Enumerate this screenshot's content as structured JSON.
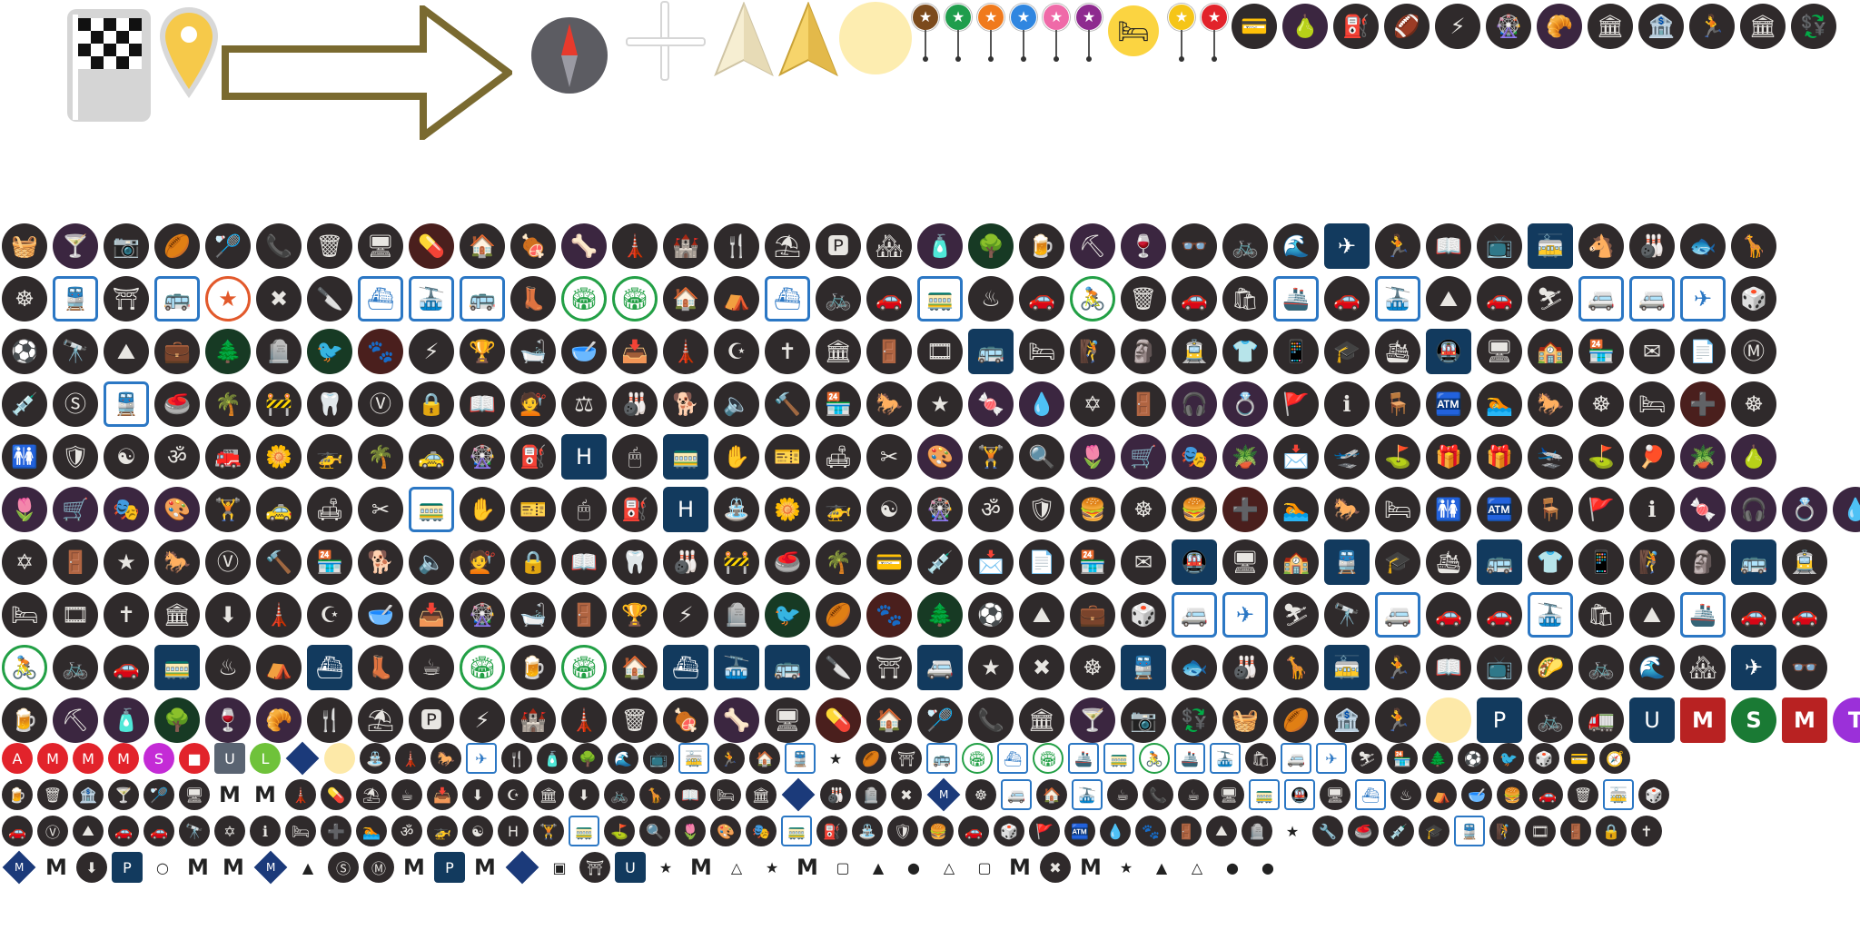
{
  "colors": {
    "icon_dark": "#2f2a2b",
    "icon_brown": "#4a1f1d",
    "icon_purple": "#3b2640",
    "icon_navy": "#123a5e",
    "transit_blue": "#2b77c4",
    "transit_green": "#23a046",
    "accent_orange": "#e2592b",
    "marker_yellow": "#fbd441",
    "halo_yellow": "#fdedb0",
    "arrow_olive": "#7a6a30"
  },
  "top_sprites": {
    "flag_icon": "checkered-flag-icon",
    "pin_icon": "location-pin-icon",
    "arrow_icon": "direction-arrow-icon",
    "compass_icon": "compass-icon",
    "crosshair_icon": "crosshair-icon",
    "north_icons": [
      "north-arrow-light-icon",
      "north-arrow-gold-icon"
    ],
    "halo_icon": "location-halo-icon",
    "pins": [
      {
        "color": "#7b4a1c",
        "glyph": "★"
      },
      {
        "color": "#1f9d4c",
        "glyph": "★"
      },
      {
        "color": "#f07a1c",
        "glyph": "★"
      },
      {
        "color": "#2f86e0",
        "glyph": "★"
      },
      {
        "color": "#ef6aa8",
        "glyph": "★"
      },
      {
        "color": "#8e2a8f",
        "glyph": "★"
      }
    ],
    "hotel_pin_glyph": "🛏",
    "pins2": [
      {
        "color": "#f5c518",
        "glyph": "★"
      },
      {
        "color": "#e2232b",
        "glyph": "★"
      }
    ],
    "header_icons": [
      "💳",
      "🍐",
      "⛽",
      "🏈",
      "⚡",
      "🎡",
      "🥐",
      "🏛",
      "🏦",
      "🏃",
      "🏛",
      "💱"
    ]
  },
  "grid_rows": [
    [
      "🧺",
      "🍸",
      "📷",
      "🏉",
      "🏸",
      "📞",
      "🗑",
      "🖥",
      "💊",
      "🏠",
      "🍖",
      "🦴",
      "🗼",
      "🏰",
      "🍴",
      "⛱",
      "🅿",
      "🏘",
      "🧴",
      "🌳",
      "🍺",
      "⛏",
      "🍷",
      "👓",
      "🚲",
      "🌊",
      "✈",
      "🏃",
      "📖",
      "📺",
      "🚋",
      "🐴",
      "🎳",
      "🐟",
      "🦒"
    ],
    [
      "☸",
      "🚆",
      "⛩",
      "🚌",
      "★",
      "✖",
      "🔪",
      "⛴",
      "🚠",
      "🚌",
      "👢",
      "🏟",
      "🏟",
      "🏠",
      "⛺",
      "⛴",
      "🚲",
      "🚗",
      "🚃",
      "♨",
      "🚗",
      "🚴",
      "🗑",
      "🚗",
      "🛍",
      "🚢",
      "🚗",
      "🚠",
      "⛰",
      "🚗",
      "⛷",
      "🚐",
      "🚐",
      "✈",
      "🎲"
    ],
    [
      "⚽",
      "🔭",
      "⛰",
      "💼",
      "🌲",
      "🪦",
      "🐦",
      "🐾",
      "⚡",
      "🏆",
      "🛁",
      "🥣",
      "📥",
      "🗼",
      "☪",
      "✝",
      "🏛",
      "🚪",
      "🎞",
      "🚌",
      "🛏",
      "🧗",
      "🗿",
      "🚊",
      "👕",
      "📱",
      "🎓",
      "🛳",
      "🚇",
      "🖥",
      "🏫",
      "🏪",
      "✉",
      "📄",
      "Ⓜ"
    ],
    [
      "💉",
      "Ⓢ",
      "🚆",
      "🥌",
      "🌴",
      "🚧",
      "🦷",
      "Ⓥ",
      "🔒",
      "📖",
      "💇",
      "⚖",
      "🎳",
      "🐕",
      "🔈",
      "🔨",
      "🏪",
      "🐎",
      "★",
      "🍬",
      "💧",
      "✡",
      "🚪",
      "🎧",
      "💍",
      "🚩",
      "ℹ",
      "🪑",
      "🏧",
      "🏊",
      "🐎",
      "☸",
      "🛏",
      "➕",
      "☸"
    ],
    [
      "🚻",
      "🛡",
      "☯",
      "ॐ",
      "🚒",
      "🌼",
      "🚁",
      "🌴",
      "🚕",
      "🎡",
      "⛽",
      "H",
      "🖱",
      "🚃",
      "✋",
      "🎫",
      "🛋",
      "✂",
      "🎨",
      "🏋",
      "🔍",
      "🌷",
      "🛒",
      "🎭",
      "🪴",
      "📩",
      "🛫",
      "⛳",
      "🎁",
      "🎁",
      "🛬",
      "⛳",
      "🏓",
      "🪴",
      "🍐"
    ],
    [
      "🌷",
      "🛒",
      "🎭",
      "🎨",
      "🏋",
      "🚕",
      "🛋",
      "✂",
      "🚃",
      "✋",
      "🎫",
      "🖱",
      "⛽",
      "H",
      "⛲",
      "🌼",
      "🚁",
      "☯",
      "🎡",
      "ॐ",
      "🛡",
      "🍔",
      "☸",
      "🍔",
      "➕",
      "🏊",
      "🐎",
      "🛏",
      "🚻",
      "🏧",
      "🪑",
      "🚩",
      "ℹ",
      "🍬",
      "🎧",
      "💍",
      "💧"
    ],
    [
      "✡",
      "🚪",
      "★",
      "🐎",
      "Ⓥ",
      "🔨",
      "🏪",
      "🐕",
      "🔈",
      "💇",
      "🔒",
      "📖",
      "🦷",
      "🎳",
      "🚧",
      "🥌",
      "🌴",
      "💳",
      "💉",
      "📩",
      "📄",
      "🏪",
      "✉",
      "🚇",
      "🖥",
      "🏫",
      "🚆",
      "🎓",
      "🛳",
      "🚌",
      "👕",
      "📱",
      "🧗",
      "🗿",
      "🚌",
      "🚊"
    ],
    [
      "🛏",
      "🎞",
      "✝",
      "🏛",
      "⬇",
      "🗼",
      "☪",
      "🥣",
      "📥",
      "🎡",
      "🛁",
      "🚪",
      "🏆",
      "⚡",
      "🪦",
      "🐦",
      "🏉",
      "🐾",
      "🌲",
      "⚽",
      "⛰",
      "💼",
      "🎲",
      "🚐",
      "✈",
      "⛷",
      "🔭",
      "🚐",
      "🚗",
      "🚗",
      "🚠",
      "🛍",
      "⛰",
      "🚢",
      "🚗",
      "🚗"
    ],
    [
      "🚴",
      "🚲",
      "🚗",
      "🚃",
      "♨",
      "⛺",
      "⛴",
      "👢",
      "☕",
      "🏟",
      "🍺",
      "🏟",
      "🏠",
      "⛴",
      "🚠",
      "🚌",
      "🔪",
      "⛩",
      "🚐",
      "★",
      "✖",
      "☸",
      "🚆",
      "🐟",
      "🎳",
      "🦒",
      "🚋",
      "🏃",
      "📖",
      "📺",
      "🌮",
      "🚲",
      "🌊",
      "🏘",
      "✈",
      "👓"
    ],
    [
      "🍺",
      "⛏",
      "🧴",
      "🌳",
      "🍷",
      "🥐",
      "🍴",
      "⛱",
      "🅿",
      "⚡",
      "🏰",
      "🗼",
      "🗑",
      "🍖",
      "🦴",
      "🖥",
      "💊",
      "🏠",
      "🏸",
      "📞",
      "🏛",
      "🍸",
      "📷",
      "💱",
      "🧺",
      "🏉",
      "🏦",
      "🏃",
      "🟡",
      "P",
      "🚲",
      "🚛",
      "U",
      "M",
      "S",
      "M",
      "T"
    ]
  ],
  "small_rows": [
    [
      "A",
      "M",
      "M",
      "M",
      "S",
      "■",
      "U",
      "L",
      "⊖",
      "●",
      "⛲",
      "🗼",
      "🐎",
      "✈",
      "🍴",
      "🧴",
      "🌳",
      "🌊",
      "📺",
      "🚋",
      "🏃",
      "🏠",
      "🚆",
      "★",
      "🏉",
      "⛩",
      "🚌",
      "🏟",
      "⛴",
      "🏟",
      "🚢",
      "🚃",
      "🚴",
      "🚢",
      "🚠",
      "🛍",
      "🚐",
      "✈",
      "⛷",
      "🏪",
      "🌲",
      "⚽",
      "🐦",
      "🎲",
      "💳",
      "🧭"
    ],
    [
      "🍺",
      "🗑",
      "🏦",
      "🍸",
      "🏸",
      "🖥",
      "M",
      "M",
      "🗼",
      "💊",
      "⛱",
      "☕",
      "📥",
      "⬇",
      "☪",
      "🏛",
      "⬇",
      "🚲",
      "🦒",
      "📖",
      "🛏",
      "🏛",
      "⊖",
      "🎳",
      "🪦",
      "✖",
      "◆",
      "☸",
      "🚐",
      "🏠",
      "🚠",
      "☕",
      "📞",
      "☕",
      "🖥",
      "🚃",
      "🚇",
      "🖥",
      "⛴",
      "♨",
      "⛺",
      "🥣",
      "🍔",
      "🚗",
      "🗑",
      "🚋",
      "🎲"
    ],
    [
      "🚗",
      "Ⓥ",
      "⛰",
      "🚗",
      "🚗",
      "🔭",
      "✡",
      "ℹ",
      "🛏",
      "➕",
      "🏊",
      "ॐ",
      "🚁",
      "☯",
      "H",
      "🏋",
      "🚃",
      "⛳",
      "🔍",
      "🌷",
      "🎨",
      "🎭",
      "🚃",
      "⛽",
      "⛲",
      "🛡",
      "🍔",
      "🚗",
      "🎲",
      "🚩",
      "🏧",
      "💧",
      "🐾",
      "🚪",
      "⛰",
      "🪦",
      "★",
      "🔧",
      "🥌",
      "💉",
      "🎓",
      "🚆",
      "🧗",
      "🎞",
      "🚪",
      "🔒",
      "✝"
    ],
    [
      "◆",
      "M",
      "⬇",
      "P",
      "○",
      "M",
      "M",
      "◆",
      "▲",
      "Ⓢ",
      "Ⓜ",
      "M",
      "P",
      "M",
      "⊖",
      "▣",
      "⛩",
      "U",
      "★",
      "M",
      "△",
      "★",
      "M",
      "▢",
      "▲",
      "●",
      "△",
      "▢",
      "M",
      "✖",
      "M",
      "★",
      "▲",
      "△",
      "●",
      "●"
    ]
  ]
}
